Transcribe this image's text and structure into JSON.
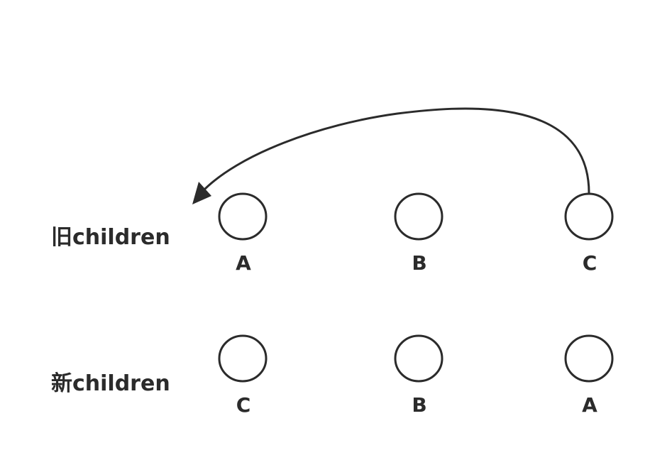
{
  "diagram": {
    "rows": {
      "old": {
        "label": "旧children",
        "nodes": [
          "A",
          "B",
          "C"
        ]
      },
      "new": {
        "label": "新children",
        "nodes": [
          "C",
          "B",
          "A"
        ]
      }
    },
    "move": {
      "from_row": "old",
      "from_node": "C",
      "to_position": "before-first"
    },
    "colors": {
      "stroke": "#2b2b2b",
      "background": "#ffffff"
    }
  }
}
